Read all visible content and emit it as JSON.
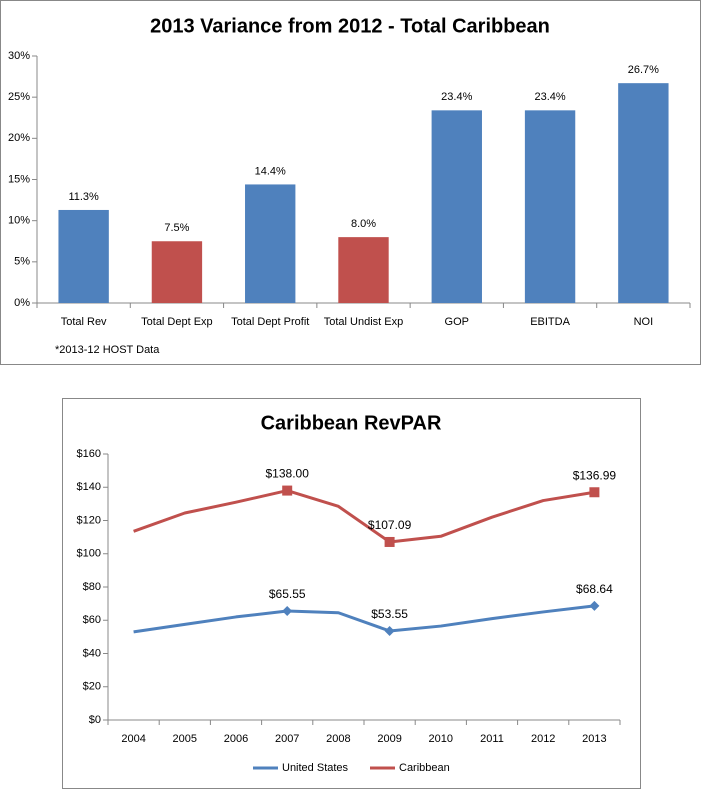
{
  "chart_data": [
    {
      "type": "bar",
      "title": "2013 Variance from 2012 - Total Caribbean",
      "categories": [
        "Total Rev",
        "Total Dept Exp",
        "Total Dept Profit",
        "Total Undist Exp",
        "GOP",
        "EBITDA",
        "NOI"
      ],
      "values": [
        11.3,
        7.5,
        14.4,
        8.0,
        23.4,
        23.4,
        26.7
      ],
      "value_labels": [
        "11.3%",
        "7.5%",
        "14.4%",
        "8.0%",
        "23.4%",
        "23.4%",
        "26.7%"
      ],
      "colors": [
        "#4f81bd",
        "#c0504d",
        "#4f81bd",
        "#c0504d",
        "#4f81bd",
        "#4f81bd",
        "#4f81bd"
      ],
      "ylim": [
        0,
        30
      ],
      "yticks": [
        {
          "value": 0,
          "label": "0%"
        },
        {
          "value": 5,
          "label": "5%"
        },
        {
          "value": 10,
          "label": "10%"
        },
        {
          "value": 15,
          "label": "15%"
        },
        {
          "value": 20,
          "label": "20%"
        },
        {
          "value": 25,
          "label": "25%"
        },
        {
          "value": 30,
          "label": "30%"
        }
      ],
      "note": "*2013-12 HOST Data"
    },
    {
      "type": "line",
      "title": "Caribbean RevPAR",
      "categories": [
        "2004",
        "2005",
        "2006",
        "2007",
        "2008",
        "2009",
        "2010",
        "2011",
        "2012",
        "2013"
      ],
      "series": [
        {
          "name": "United States",
          "color": "#4f81bd",
          "marker": "diamond",
          "values": [
            53,
            57.5,
            62,
            65.55,
            64.5,
            53.55,
            56.5,
            61,
            65,
            68.64
          ],
          "value_labels": [
            null,
            null,
            null,
            "$65.55",
            null,
            "$53.55",
            null,
            null,
            null,
            "$68.64"
          ]
        },
        {
          "name": "Caribbean",
          "color": "#c0504d",
          "marker": "square",
          "values": [
            113.5,
            124.5,
            131,
            138.0,
            128.5,
            107.09,
            110.5,
            122,
            132,
            136.99
          ],
          "value_labels": [
            null,
            null,
            null,
            "$138.00",
            null,
            "$107.09",
            null,
            null,
            null,
            "$136.99"
          ]
        }
      ],
      "ylim": [
        0,
        160
      ],
      "yticks": [
        {
          "value": 0,
          "label": "$0"
        },
        {
          "value": 20,
          "label": "$20"
        },
        {
          "value": 40,
          "label": "$40"
        },
        {
          "value": 60,
          "label": "$60"
        },
        {
          "value": 80,
          "label": "$80"
        },
        {
          "value": 100,
          "label": "$100"
        },
        {
          "value": 120,
          "label": "$120"
        },
        {
          "value": 140,
          "label": "$140"
        },
        {
          "value": 160,
          "label": "$160"
        }
      ],
      "legend": "bottom"
    }
  ]
}
